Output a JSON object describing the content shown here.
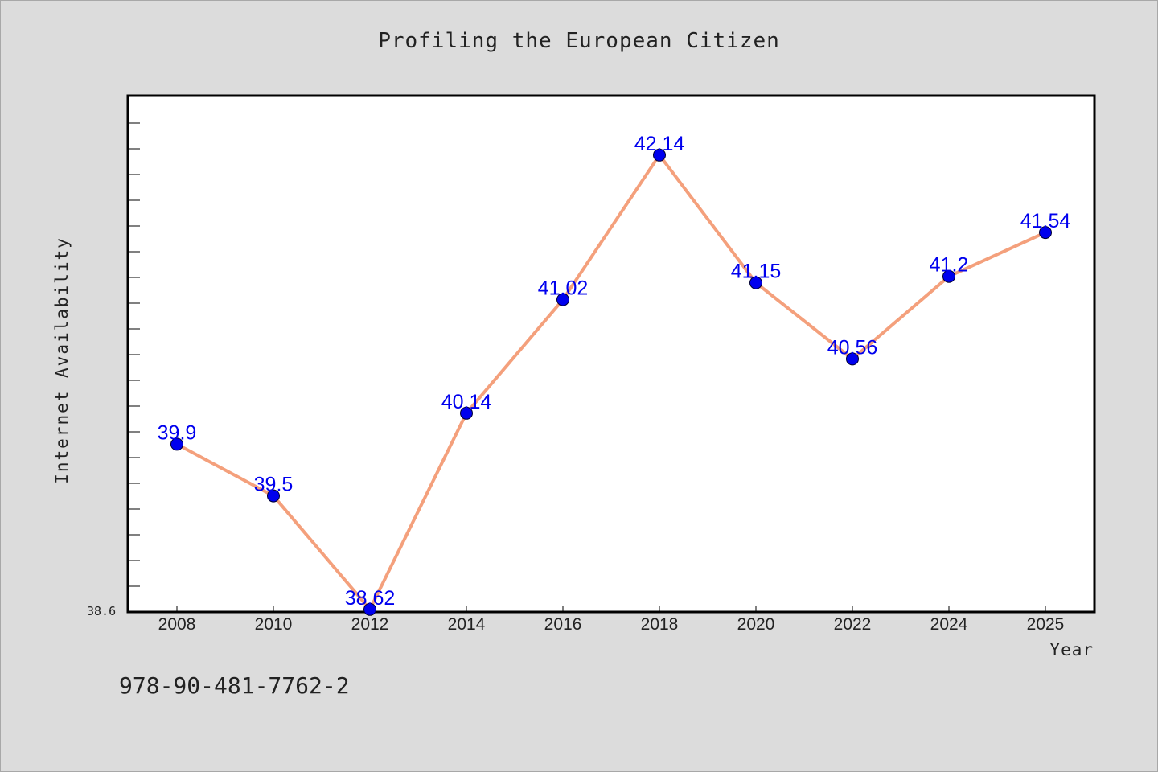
{
  "chart_data": {
    "type": "line",
    "title": "Profiling the European Citizen",
    "xlabel": "Year",
    "ylabel": "Internet Availability",
    "categories": [
      "2008",
      "2010",
      "2012",
      "2014",
      "2016",
      "2018",
      "2020",
      "2022",
      "2024",
      "2025"
    ],
    "x": [
      2008,
      2010,
      2012,
      2014,
      2016,
      2018,
      2020,
      2022,
      2024,
      2025
    ],
    "series": [
      {
        "values": [
          39.9,
          39.5,
          38.62,
          40.14,
          41.02,
          42.14,
          41.15,
          40.56,
          41.2,
          41.54
        ],
        "labels": [
          "39.9",
          "39.5",
          "38.62",
          "40.14",
          "41.02",
          "42.14",
          "41.15",
          "40.56",
          "41.2",
          "41.54"
        ],
        "line_color": "#f4a07c",
        "marker_color": "#0000ee"
      }
    ],
    "ylim": [
      38.6,
      42.6
    ],
    "ylim_label": "38.6",
    "label_color": "#0000ee",
    "grid": false,
    "legend": "none"
  },
  "footer": {
    "isbn": "978-90-481-7762-2"
  },
  "colors": {
    "background": "#dcdcdc",
    "plot_background": "#ffffff",
    "axis": "#000000"
  }
}
